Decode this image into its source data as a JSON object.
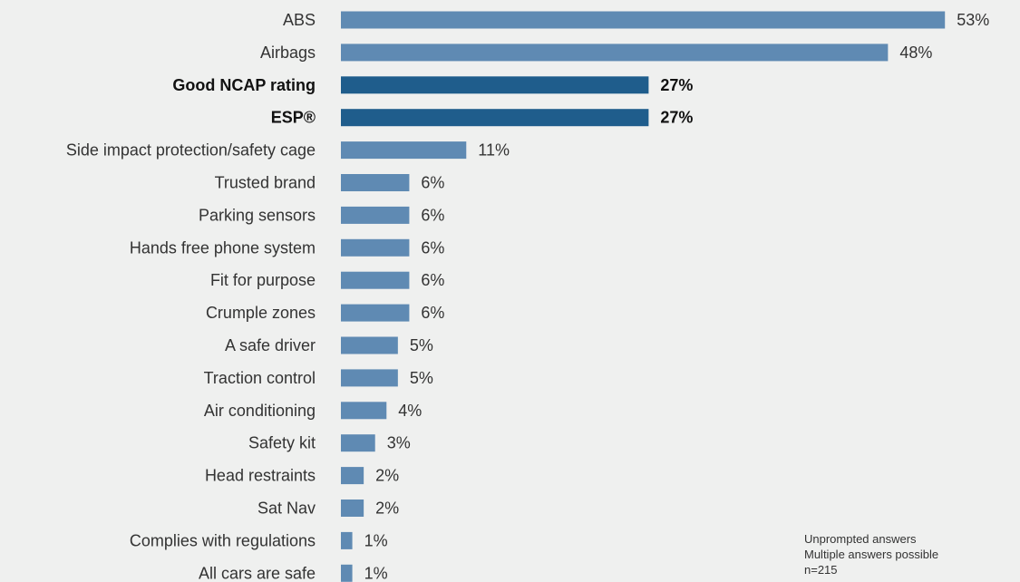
{
  "chart_data": {
    "type": "bar",
    "orientation": "horizontal",
    "title": "",
    "xlabel": "",
    "ylabel": "",
    "value_suffix": "%",
    "xlim": [
      0,
      53
    ],
    "grid": false,
    "colors": {
      "default_bar": "#5f8ab3",
      "highlight_bar": "#1f5d8c",
      "background": "#eff0ef",
      "text": "#333333",
      "highlight_text": "#111111"
    },
    "categories": [
      "ABS",
      "Airbags",
      "Good NCAP rating",
      "ESP®",
      "Side impact protection/safety cage",
      "Trusted brand",
      "Parking sensors",
      "Hands free phone system",
      "Fit for purpose",
      "Crumple zones",
      "A safe driver",
      "Traction control",
      "Air conditioning",
      "Safety kit",
      "Head restraints",
      "Sat Nav",
      "Complies with regulations",
      "All cars are safe"
    ],
    "values": [
      53,
      48,
      27,
      27,
      11,
      6,
      6,
      6,
      6,
      6,
      5,
      5,
      4,
      3,
      2,
      2,
      1,
      1
    ],
    "highlighted": [
      false,
      false,
      true,
      true,
      false,
      false,
      false,
      false,
      false,
      false,
      false,
      false,
      false,
      false,
      false,
      false,
      false,
      false
    ]
  },
  "notes": {
    "line1": "Unprompted answers",
    "line2": "Multiple answers possible",
    "line3": "n=215"
  }
}
